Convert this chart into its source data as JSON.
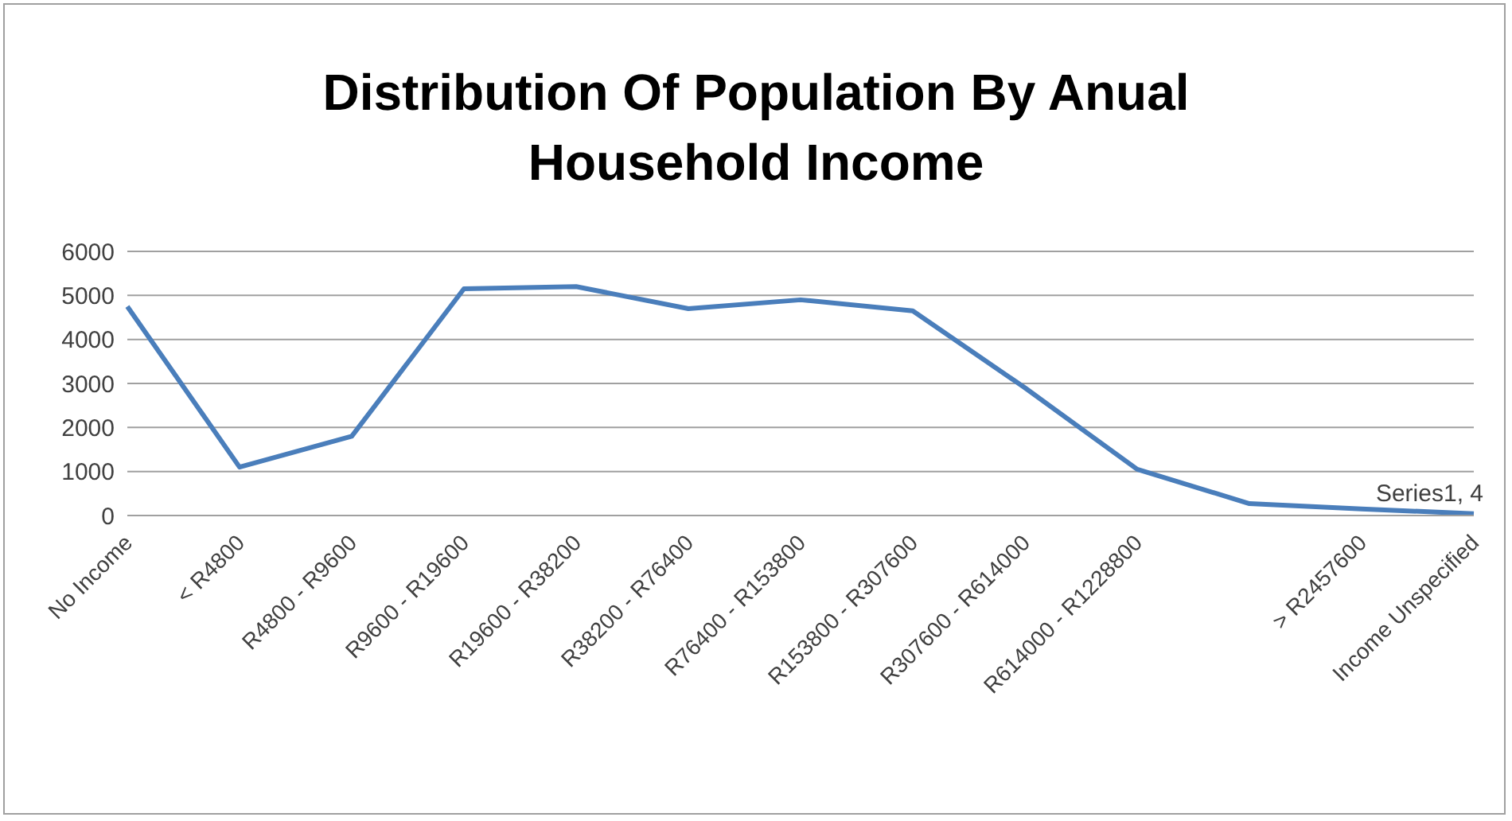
{
  "chart_data": {
    "type": "line",
    "title": "Distribution Of Population By Anual Household Income",
    "categories": [
      "No Income",
      "< R4800",
      "R4800 - R9600",
      "R9600 - R19600",
      "R19600 - R38200",
      "R38200 - R76400",
      "R76400 - R153800",
      "R153800 - R307600",
      "R307600 - R614000",
      "R614000 - R1228800",
      null,
      "> R2457600",
      "Income Unspecified"
    ],
    "series": [
      {
        "color": "#4a7ebb",
        "values": [
          4750,
          1100,
          1800,
          5150,
          5200,
          4700,
          4900,
          4650,
          2900,
          1050,
          270,
          150,
          40
        ],
        "value_labels": [
          null,
          null,
          null,
          null,
          null,
          null,
          null,
          null,
          null,
          null,
          null,
          null,
          "Series1, 4"
        ]
      }
    ],
    "ylim": [
      0,
      6000
    ],
    "yticks": [
      0,
      1000,
      2000,
      3000,
      4000,
      5000,
      6000
    ],
    "grid": "y",
    "marker": "none",
    "line_style": "solid"
  }
}
